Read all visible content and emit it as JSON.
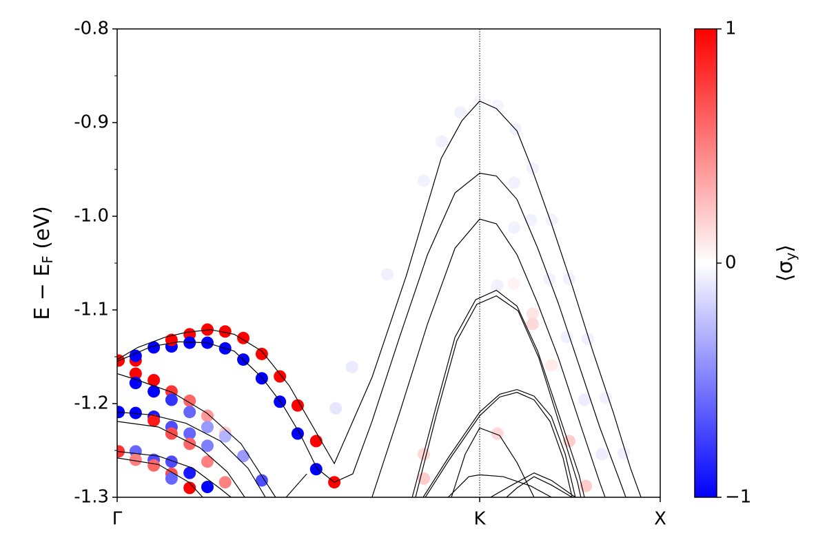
{
  "chart_data": {
    "type": "line",
    "ylabel": [
      "E − E",
      "F",
      " (eV)"
    ],
    "xlim": [
      0,
      1.498
    ],
    "xticks": [
      {
        "value": 0,
        "label": "Γ"
      },
      {
        "value": 1,
        "label": "K"
      },
      {
        "value": 1.498,
        "label": "X"
      }
    ],
    "ylim": [
      -1.3,
      -0.8
    ],
    "yticks": [
      {
        "value": -0.8,
        "label": "-0.8"
      },
      {
        "value": -0.9,
        "label": "-0.9"
      },
      {
        "value": -1.0,
        "label": "-1.0"
      },
      {
        "value": -1.1,
        "label": "-1.1"
      },
      {
        "value": -1.2,
        "label": "-1.2"
      },
      {
        "value": -1.3,
        "label": "-1.3"
      }
    ],
    "yminorticks": [
      -0.85,
      -0.95,
      -1.05,
      -1.15,
      -1.25
    ],
    "line_color": "#000000",
    "series": [
      {
        "x": [
          0,
          0.057,
          0.133,
          0.19,
          0.257,
          0.323,
          0.399,
          0.475,
          0.551,
          0.599,
          0.703,
          0.798,
          0.894,
          0.951,
          1,
          1.046,
          1.103,
          1.141,
          1.198,
          1.255,
          1.312,
          1.369,
          1.416,
          1.445
        ],
        "values": [
          -1.153,
          -1.14,
          -1.129,
          -1.124,
          -1.121,
          -1.126,
          -1.144,
          -1.181,
          -1.232,
          -1.264,
          -1.172,
          -1.063,
          -0.938,
          -0.898,
          -0.877,
          -0.885,
          -0.909,
          -0.946,
          -1.008,
          -1.074,
          -1.144,
          -1.21,
          -1.269,
          -1.3
        ]
      },
      {
        "x": [
          0,
          0.095,
          0.171,
          0.247,
          0.323,
          0.399,
          0.456,
          0.504,
          0.551,
          0.599,
          0.65,
          0.703,
          0.779,
          0.856,
          0.932,
          1,
          1.046,
          1.103,
          1.16,
          1.217,
          1.274,
          1.331,
          1.388,
          1.403
        ],
        "values": [
          -1.155,
          -1.139,
          -1.134,
          -1.135,
          -1.144,
          -1.172,
          -1.201,
          -1.232,
          -1.269,
          -1.284,
          -1.275,
          -1.219,
          -1.129,
          -1.041,
          -0.975,
          -0.954,
          -0.957,
          -0.982,
          -1.034,
          -1.093,
          -1.159,
          -1.225,
          -1.284,
          -1.3
        ]
      },
      {
        "x": [
          0.703,
          0.779,
          0.856,
          0.932,
          1,
          1.046,
          1.103,
          1.16,
          1.217,
          1.274,
          1.331,
          1.346
        ],
        "values": [
          -1.3,
          -1.21,
          -1.115,
          -1.034,
          -1.003,
          -1.008,
          -1.041,
          -1.093,
          -1.151,
          -1.218,
          -1.284,
          -1.3
        ]
      },
      {
        "x": [
          0.814,
          0.875,
          0.932,
          0.989,
          1.046,
          1.103,
          1.16,
          1.217,
          1.274,
          1.289
        ],
        "values": [
          -1.3,
          -1.21,
          -1.129,
          -1.089,
          -1.079,
          -1.096,
          -1.144,
          -1.21,
          -1.276,
          -1.3
        ]
      },
      {
        "x": [
          0.823,
          0.882,
          0.937,
          0.992,
          1.046,
          1.106,
          1.163,
          1.217,
          1.27,
          1.279
        ],
        "values": [
          -1.3,
          -1.21,
          -1.133,
          -1.094,
          -1.085,
          -1.101,
          -1.151,
          -1.218,
          -1.284,
          -1.3
        ]
      },
      {
        "x": [
          0.844,
          0.913,
          1,
          1.055,
          1.103,
          1.15,
          1.198,
          1.236,
          1.264
        ],
        "values": [
          -1.3,
          -1.258,
          -1.209,
          -1.19,
          -1.185,
          -1.192,
          -1.214,
          -1.254,
          -1.3
        ]
      },
      {
        "x": [
          0.85,
          0.916,
          1,
          1.055,
          1.103,
          1.15,
          1.194,
          1.23,
          1.255
        ],
        "values": [
          -1.3,
          -1.26,
          -1.213,
          -1.193,
          -1.188,
          -1.196,
          -1.219,
          -1.258,
          -1.3
        ]
      },
      {
        "x": [
          0.922,
          0.96,
          1,
          1.055,
          1.103,
          1.15
        ],
        "values": [
          -1.3,
          -1.254,
          -1.226,
          -1.234,
          -1.263,
          -1.3
        ]
      },
      {
        "x": [
          0.913,
          0.97,
          1,
          1.065,
          1.141,
          1.198
        ],
        "values": [
          -1.3,
          -1.278,
          -1.276,
          -1.278,
          -1.288,
          -1.3
        ]
      },
      {
        "x": [
          1.03,
          1.084,
          1.15,
          1.198,
          1.264
        ],
        "values": [
          -1.3,
          -1.288,
          -1.274,
          -1.282,
          -1.3
        ]
      },
      {
        "x": [
          1.074,
          1.103,
          1.15,
          1.198,
          1.255
        ],
        "values": [
          -1.3,
          -1.29,
          -1.278,
          -1.287,
          -1.3
        ]
      },
      {
        "x": [
          0,
          0.057,
          0.152,
          0.247,
          0.342,
          0.437
        ],
        "values": [
          -1.168,
          -1.175,
          -1.188,
          -1.21,
          -1.243,
          -1.3
        ]
      },
      {
        "x": [
          0,
          0.095,
          0.19,
          0.285,
          0.361,
          0.409
        ],
        "values": [
          -1.209,
          -1.212,
          -1.221,
          -1.24,
          -1.269,
          -1.3
        ]
      },
      {
        "x": [
          0,
          0.114,
          0.228,
          0.304,
          0.352
        ],
        "values": [
          -1.219,
          -1.225,
          -1.247,
          -1.273,
          -1.3
        ]
      },
      {
        "x": [
          0,
          0.114,
          0.209,
          0.285,
          0.314
        ],
        "values": [
          -1.251,
          -1.256,
          -1.269,
          -1.291,
          -1.3
        ]
      },
      {
        "x": [
          0,
          0.114,
          0.198,
          0.236
        ],
        "values": [
          -1.258,
          -1.265,
          -1.284,
          -1.3
        ]
      },
      {
        "x": [
          0.466,
          0.523
        ],
        "values": [
          -1.3,
          -1.275
        ]
      }
    ],
    "scatter": {
      "x": [
        0.004,
        0.051,
        0.051,
        0.101,
        0.15,
        0.15,
        0.2,
        0.2,
        0.249,
        0.249,
        0.298,
        0.298,
        0.348,
        0.348,
        0.399,
        0.399,
        0.449,
        0.449,
        0.498,
        0.498,
        0.549,
        0.549,
        0.599,
        0.051,
        0.051,
        0.101,
        0.101,
        0.15,
        0.15,
        0.2,
        0.2,
        0.249,
        0.249,
        0.298,
        0.298,
        0.004,
        0.051,
        0.101,
        0.101,
        0.15,
        0.15,
        0.2,
        0.2,
        0.249,
        0.249,
        0.298,
        0.348,
        0.004,
        0.051,
        0.051,
        0.101,
        0.101,
        0.15,
        0.15,
        0.2,
        0.2,
        0.249,
        0.15,
        0.399,
        0.745,
        0.846,
        0.895,
        0.947,
        1,
        1.049,
        1.099,
        1.146,
        1.198,
        1.247,
        1.298,
        1.348,
        1.397,
        0.648,
        0.603,
        1.141,
        1.192,
        1.24,
        1.289,
        1.337,
        1.146,
        1.146,
        1.198,
        1.247,
        1.049,
        0.846,
        0.846,
        1.095,
        1.095,
        1.095,
        1.049,
        1.293
      ],
      "values": [
        -1.154,
        -1.154,
        -1.149,
        -1.14,
        -1.139,
        -1.132,
        -1.126,
        -1.135,
        -1.121,
        -1.135,
        -1.123,
        -1.141,
        -1.13,
        -1.153,
        -1.147,
        -1.173,
        -1.171,
        -1.198,
        -1.202,
        -1.232,
        -1.24,
        -1.27,
        -1.284,
        -1.168,
        -1.178,
        -1.175,
        -1.187,
        -1.187,
        -1.196,
        -1.197,
        -1.209,
        -1.213,
        -1.225,
        -1.231,
        -1.235,
        -1.209,
        -1.21,
        -1.214,
        -1.218,
        -1.225,
        -1.232,
        -1.232,
        -1.243,
        -1.245,
        -1.262,
        -1.284,
        -1.256,
        -1.251,
        -1.251,
        -1.26,
        -1.26,
        -1.266,
        -1.262,
        -1.275,
        -1.274,
        -1.29,
        -1.289,
        -1.28,
        -1.282,
        -1.062,
        -0.962,
        -0.92,
        -0.889,
        -0.877,
        -0.882,
        -0.907,
        -0.949,
        -1.004,
        -1.067,
        -1.131,
        -1.194,
        -1.253,
        -1.161,
        -1.205,
        -1.004,
        -1.067,
        -1.129,
        -1.196,
        -1.254,
        -1.104,
        -1.115,
        -1.159,
        -1.24,
        -1.232,
        -1.254,
        -1.28,
        -0.964,
        -1.012,
        -1.072,
        -1.074,
        -1.288
      ],
      "spin": [
        1,
        1,
        -1,
        -1,
        -1,
        1,
        1,
        -1,
        1,
        -1,
        1,
        -1,
        1,
        -1,
        1,
        -1,
        1,
        -1,
        1,
        -1,
        1,
        -1,
        1,
        1,
        -1,
        1,
        -1,
        0.8,
        -0.8,
        0.6,
        -0.6,
        0.4,
        -0.4,
        0.2,
        -0.3,
        -1,
        -1,
        -0.9,
        0.9,
        -0.7,
        0.7,
        -0.6,
        0.6,
        -0.5,
        0.5,
        0.5,
        -0.4,
        0.8,
        -0.6,
        0.5,
        -0.7,
        0.6,
        -0.7,
        0.7,
        -0.9,
        1,
        -1,
        -0.6,
        -0.7,
        -0.06,
        -0.05,
        -0.05,
        -0.05,
        -0.03,
        -0.04,
        -0.05,
        -0.05,
        -0.05,
        -0.06,
        -0.06,
        -0.06,
        -0.06,
        -0.08,
        -0.1,
        -0.05,
        -0.05,
        -0.06,
        -0.07,
        -0.07,
        0.1,
        0.15,
        0.08,
        0.2,
        0.15,
        0.15,
        0.2,
        -0.05,
        -0.05,
        0.05,
        -0.05,
        0.2
      ]
    },
    "colorbar": {
      "label": [
        "⟨σ",
        "y",
        "⟩"
      ],
      "lim": [
        -1,
        1
      ],
      "ticks": [
        {
          "value": -1,
          "label": "−1"
        },
        0,
        1
      ],
      "colors": [
        "#0000ff",
        "#ffffff",
        "#ff0000"
      ]
    }
  }
}
